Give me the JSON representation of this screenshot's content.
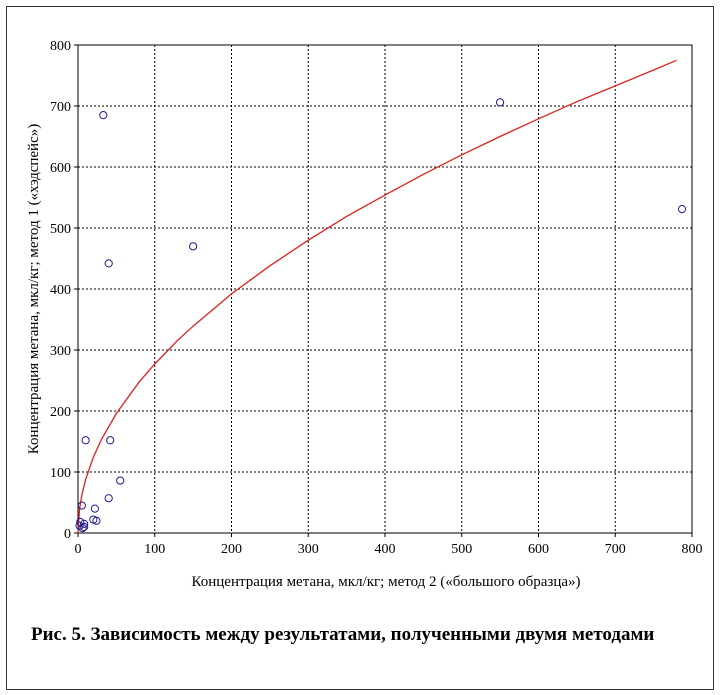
{
  "figure": {
    "caption": "Рис. 5. Зависимость между результатами, полученными двумя методами"
  },
  "chart_data": {
    "type": "scatter",
    "xlabel": "Концентрация метана, мкл/кг; метод 2 («большого образца»)",
    "ylabel": "Концентрация метана, мкл/кг; метод 1 («хэдспейс»)",
    "xlim": [
      0,
      800
    ],
    "ylim": [
      0,
      800
    ],
    "x_ticks": [
      0,
      100,
      200,
      300,
      400,
      500,
      600,
      700,
      800
    ],
    "y_ticks": [
      0,
      100,
      200,
      300,
      400,
      500,
      600,
      700,
      800
    ],
    "grid": true,
    "colors": {
      "points": "#1a1a8c",
      "fit": "#e0201c",
      "grid": "#000000",
      "axes": "#000000"
    },
    "points": [
      {
        "x": 2,
        "y": 12
      },
      {
        "x": 3,
        "y": 18
      },
      {
        "x": 5,
        "y": 45
      },
      {
        "x": 6,
        "y": 8
      },
      {
        "x": 8,
        "y": 15
      },
      {
        "x": 8,
        "y": 10
      },
      {
        "x": 10,
        "y": 152
      },
      {
        "x": 20,
        "y": 22
      },
      {
        "x": 22,
        "y": 40
      },
      {
        "x": 24,
        "y": 20
      },
      {
        "x": 33,
        "y": 685
      },
      {
        "x": 40,
        "y": 57
      },
      {
        "x": 40,
        "y": 442
      },
      {
        "x": 42,
        "y": 152
      },
      {
        "x": 55,
        "y": 86
      },
      {
        "x": 150,
        "y": 470
      },
      {
        "x": 550,
        "y": 706
      },
      {
        "x": 787,
        "y": 531
      }
    ],
    "fit_curve": {
      "x": [
        0,
        2,
        5,
        10,
        20,
        30,
        50,
        80,
        100,
        130,
        150,
        200,
        250,
        300,
        350,
        400,
        450,
        500,
        550,
        600,
        650,
        700,
        750,
        780
      ],
      "y": [
        0,
        39,
        62,
        88,
        124,
        152,
        196,
        248,
        277,
        316,
        339,
        392,
        438,
        480,
        519,
        554,
        588,
        620,
        650,
        679,
        707,
        733,
        759,
        775
      ]
    }
  }
}
